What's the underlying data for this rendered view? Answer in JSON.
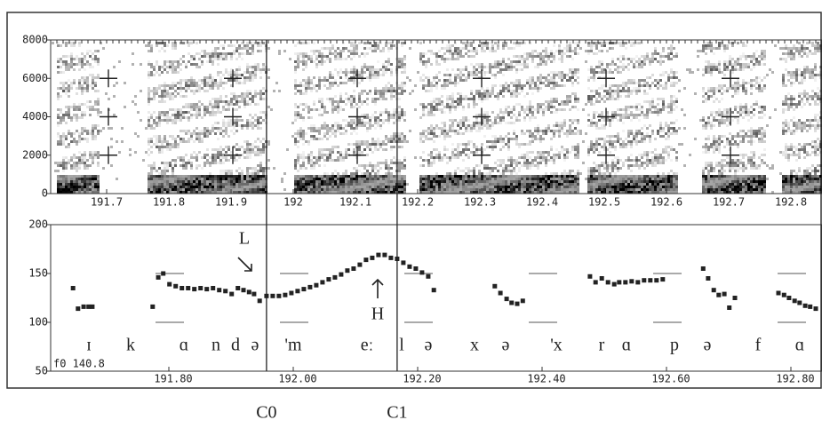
{
  "chart_data": [
    {
      "type": "spectrogram",
      "xlim": [
        191.61,
        192.85
      ],
      "xticks": [
        191.7,
        191.8,
        191.9,
        192,
        192.1,
        192.2,
        192.3,
        192.4,
        192.5,
        192.6,
        192.7,
        192.8
      ],
      "ylim": [
        0,
        8000
      ],
      "yticks": [
        0,
        2000,
        4000,
        6000,
        8000
      ]
    },
    {
      "type": "scatter",
      "xlim": [
        191.61,
        192.85
      ],
      "xticks": [
        {
          "value": 191.8,
          "label": "191.80"
        },
        {
          "value": 192.0,
          "label": "192.00"
        },
        {
          "value": 192.2,
          "label": "192.20"
        },
        {
          "value": 192.4,
          "label": "192.40"
        },
        {
          "value": 192.6,
          "label": "192.60"
        },
        {
          "value": 192.8,
          "label": "192.80"
        }
      ],
      "ylim": [
        50,
        200
      ],
      "yticks": [
        50,
        100,
        150,
        200
      ],
      "color": "#222222",
      "x": [
        191.646,
        191.654,
        191.663,
        191.671,
        191.677,
        191.774,
        191.783,
        191.791,
        191.801,
        191.811,
        191.821,
        191.831,
        191.841,
        191.851,
        191.861,
        191.871,
        191.881,
        191.891,
        191.901,
        191.911,
        191.92,
        191.929,
        191.937,
        191.946,
        191.957,
        191.967,
        191.977,
        191.987,
        191.997,
        192.007,
        192.017,
        192.027,
        192.037,
        192.047,
        192.057,
        192.067,
        192.077,
        192.087,
        192.097,
        192.107,
        192.117,
        192.127,
        192.137,
        192.147,
        192.157,
        192.167,
        192.177,
        192.187,
        192.197,
        192.207,
        192.217,
        192.226,
        192.324,
        192.333,
        192.343,
        192.351,
        192.36,
        192.369,
        192.477,
        192.486,
        192.496,
        192.506,
        192.516,
        192.524,
        192.534,
        192.544,
        192.554,
        192.564,
        192.574,
        192.584,
        192.594,
        192.659,
        192.667,
        192.676,
        192.684,
        192.693,
        192.701,
        192.71,
        192.78,
        192.789,
        192.797,
        192.806,
        192.814,
        192.823,
        192.831,
        192.84
      ],
      "values": [
        135,
        114,
        116,
        116,
        116,
        116,
        146,
        150,
        139,
        137,
        135,
        135,
        134,
        135,
        134,
        135,
        133,
        132,
        129,
        135,
        133,
        131,
        129,
        122,
        127,
        127,
        127,
        128,
        130,
        132,
        134,
        136,
        138,
        141,
        144,
        146,
        149,
        153,
        155,
        159,
        164,
        166,
        169,
        169,
        166,
        165,
        161,
        157,
        155,
        151,
        147,
        133,
        137,
        130,
        124,
        120,
        119,
        122,
        147,
        141,
        145,
        141,
        139,
        141,
        141,
        142,
        141,
        143,
        143,
        143,
        144,
        155,
        145,
        133,
        128,
        129,
        115,
        125,
        130,
        128,
        125,
        122,
        120,
        117,
        116,
        114
      ],
      "segments": [
        "ɪ",
        "k",
        "ɑ",
        "n",
        "d",
        "ə",
        "'m",
        "eː",
        "l",
        "ə",
        "x",
        "ə",
        "'x",
        "r",
        "ɑ",
        "p",
        "ə",
        "f",
        "ɑ"
      ],
      "annotations": [
        "L",
        "H",
        "f0 140.8"
      ],
      "boundaries": [
        {
          "time": 191.957,
          "label": "C0"
        },
        {
          "time": 192.167,
          "label": "C1"
        }
      ]
    }
  ]
}
